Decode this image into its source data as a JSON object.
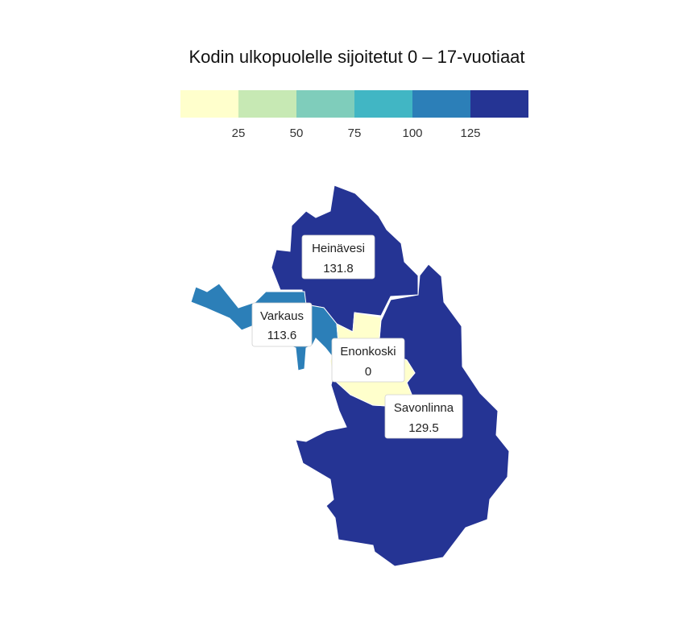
{
  "title": "Kodin ulkopuolelle sijoitetut 0 – 17-vuotiaat",
  "legend": {
    "colors": [
      "#ffffcc",
      "#c7e9b4",
      "#7fcdbb",
      "#41b6c4",
      "#2c7fb8",
      "#253494"
    ],
    "ticks": [
      "25",
      "50",
      "75",
      "100",
      "125"
    ]
  },
  "regions": [
    {
      "name": "Heinävesi",
      "value": "131.8",
      "color": "#253494"
    },
    {
      "name": "Varkaus",
      "value": "113.6",
      "color": "#2c7fb8"
    },
    {
      "name": "Enonkoski",
      "value": "0",
      "color": "#ffffcc"
    },
    {
      "name": "Savonlinna",
      "value": "129.5",
      "color": "#253494"
    }
  ]
}
